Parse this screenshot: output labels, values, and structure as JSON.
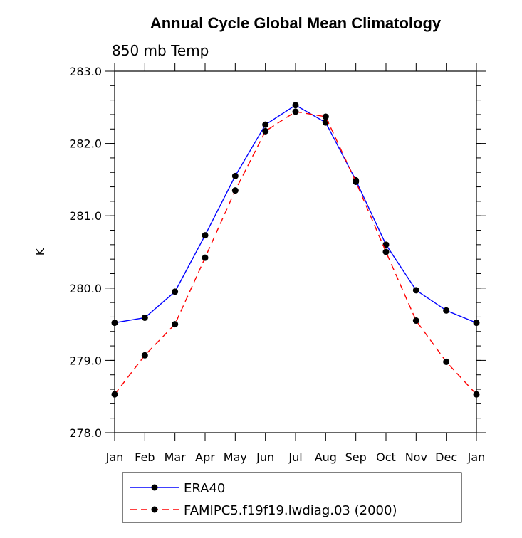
{
  "chart_data": {
    "type": "line",
    "title": "Annual Cycle Global Mean Climatology",
    "subtitle": "850 mb Temp",
    "xlabel": "",
    "ylabel": "K",
    "categories": [
      "Jan",
      "Feb",
      "Mar",
      "Apr",
      "May",
      "Jun",
      "Jul",
      "Aug",
      "Sep",
      "Oct",
      "Nov",
      "Dec",
      "Jan"
    ],
    "ylim": [
      278.0,
      283.0
    ],
    "yticks": [
      "278.0",
      "279.0",
      "280.0",
      "281.0",
      "282.0",
      "283.0"
    ],
    "grid": false,
    "legend_position": "bottom",
    "series": [
      {
        "name": "ERA40",
        "color": "#0000ff",
        "dash": "solid",
        "values": [
          279.52,
          279.59,
          279.95,
          280.73,
          281.55,
          282.26,
          282.53,
          282.29,
          281.49,
          280.6,
          279.97,
          279.69,
          279.52
        ]
      },
      {
        "name": "FAMIPC5.f19f19.lwdiag.03 (2000)",
        "color": "#ff0000",
        "dash": "dashed",
        "values": [
          278.53,
          279.07,
          279.5,
          280.42,
          281.35,
          282.17,
          282.44,
          282.37,
          281.47,
          280.5,
          279.55,
          278.98,
          278.53
        ]
      }
    ]
  }
}
